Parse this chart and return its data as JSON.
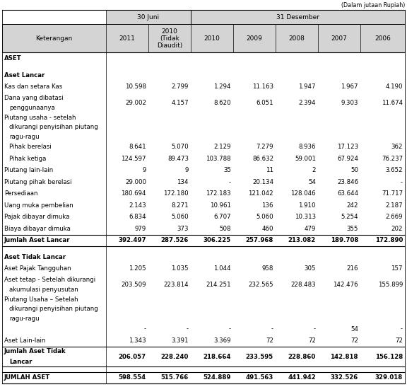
{
  "title_note": "(Dalam jutaan Rupiah)",
  "col_headers_l1_juni": "30 Juni",
  "col_headers_l1_des": "31 Desember",
  "col_headers_l2": [
    "Keterangan",
    "2011",
    "2010\n(Tidak\nDiaudit)",
    "2010",
    "2009",
    "2008",
    "2007",
    "2006"
  ],
  "rows": [
    {
      "label": "ASET",
      "values": [
        "",
        "",
        "",
        "",
        "",
        "",
        ""
      ],
      "style": "section_bold"
    },
    {
      "label": "",
      "values": [
        "",
        "",
        "",
        "",
        "",
        "",
        ""
      ],
      "style": "blank"
    },
    {
      "label": "Aset Lancar",
      "values": [
        "",
        "",
        "",
        "",
        "",
        "",
        ""
      ],
      "style": "subsection_bold"
    },
    {
      "label": "Kas dan setara Kas",
      "values": [
        "10.598",
        "2.799",
        "1.294",
        "11.163",
        "1.947",
        "1.967",
        "4.190"
      ],
      "style": "normal"
    },
    {
      "label": "Dana yang dibatasi\n  penggunaanya",
      "values": [
        "29.002",
        "4.157",
        "8.620",
        "6.051",
        "2.394",
        "9.303",
        "11.674"
      ],
      "style": "normal"
    },
    {
      "label": "Piutang usaha - setelah\n  dikurangi penyisihan piutang\n  ragu-ragu",
      "values": [
        "",
        "",
        "",
        "",
        "",
        "",
        ""
      ],
      "style": "normal"
    },
    {
      "label": "  Pihak berelasi",
      "values": [
        "8.641",
        "5.070",
        "2.129",
        "7.279",
        "8.936",
        "17.123",
        "362"
      ],
      "style": "normal"
    },
    {
      "label": "  Pihak ketiga",
      "values": [
        "124.597",
        "89.473",
        "103.788",
        "86.632",
        "59.001",
        "67.924",
        "76.237"
      ],
      "style": "normal"
    },
    {
      "label": "Piutang lain-lain",
      "values": [
        "9",
        "9",
        "35",
        "11",
        "2",
        "50",
        "3.652"
      ],
      "style": "normal"
    },
    {
      "label": "Piutang pihak berelasi",
      "values": [
        "29.000",
        "134",
        "-",
        "20.134",
        "54",
        "23.846",
        "-"
      ],
      "style": "normal"
    },
    {
      "label": "Persediaan",
      "values": [
        "180.694",
        "172.180",
        "172.183",
        "121.042",
        "128.046",
        "63.644",
        "71.717"
      ],
      "style": "normal"
    },
    {
      "label": "Uang muka pembelian",
      "values": [
        "2.143",
        "8.271",
        "10.961",
        "136",
        "1.910",
        "242",
        "2.187"
      ],
      "style": "normal"
    },
    {
      "label": "Pajak dibayar dimuka",
      "values": [
        "6.834",
        "5.060",
        "6.707",
        "5.060",
        "10.313",
        "5.254",
        "2.669"
      ],
      "style": "normal"
    },
    {
      "label": "Biaya dibayar dimuka",
      "values": [
        "979",
        "373",
        "508",
        "460",
        "479",
        "355",
        "202"
      ],
      "style": "normal"
    },
    {
      "label": "Jumlah Aset Lancar",
      "values": [
        "392.497",
        "287.526",
        "306.225",
        "257.968",
        "213.082",
        "189.708",
        "172.890"
      ],
      "style": "total_bold"
    },
    {
      "label": "",
      "values": [
        "",
        "",
        "",
        "",
        "",
        "",
        ""
      ],
      "style": "blank"
    },
    {
      "label": "Aset Tidak Lancar",
      "values": [
        "",
        "",
        "",
        "",
        "",
        "",
        ""
      ],
      "style": "subsection_bold"
    },
    {
      "label": "Aset Pajak Tangguhan",
      "values": [
        "1.205",
        "1.035",
        "1.044",
        "958",
        "305",
        "216",
        "157"
      ],
      "style": "normal"
    },
    {
      "label": "Aset tetap - Setelah dikurangi\n  akumulasi penyusutan",
      "values": [
        "203.509",
        "223.814",
        "214.251",
        "232.565",
        "228.483",
        "142.476",
        "155.899"
      ],
      "style": "normal"
    },
    {
      "label": "Piutang Usaha – Setelah\n  dikurangi penyisihan piutang\n  ragu-ragu",
      "values": [
        "",
        "",
        "",
        "",
        "",
        "",
        ""
      ],
      "style": "normal"
    },
    {
      "label": "",
      "values": [
        "-",
        "-",
        "-",
        "-",
        "-",
        "54",
        "-"
      ],
      "style": "normal_values_only"
    },
    {
      "label": "Aset Lain-lain",
      "values": [
        "1.343",
        "3.391",
        "3.369",
        "72",
        "72",
        "72",
        "72"
      ],
      "style": "normal"
    },
    {
      "label": "Jumlah Aset Tidak\n  Lancar",
      "values": [
        "206.057",
        "228.240",
        "218.664",
        "233.595",
        "228.860",
        "142.818",
        "156.128"
      ],
      "style": "total_bold"
    },
    {
      "label": "",
      "values": [
        "",
        "",
        "",
        "",
        "",
        "",
        ""
      ],
      "style": "blank"
    },
    {
      "label": "JUMLAH ASET",
      "values": [
        "598.554",
        "515.766",
        "524.889",
        "491.563",
        "441.942",
        "332.526",
        "329.018"
      ],
      "style": "grand_total_bold"
    }
  ],
  "bg_color": "#ffffff",
  "header_bg": "#d4d4d4",
  "line_color": "#000000",
  "font_size": 6.2,
  "header_font_size": 6.5
}
